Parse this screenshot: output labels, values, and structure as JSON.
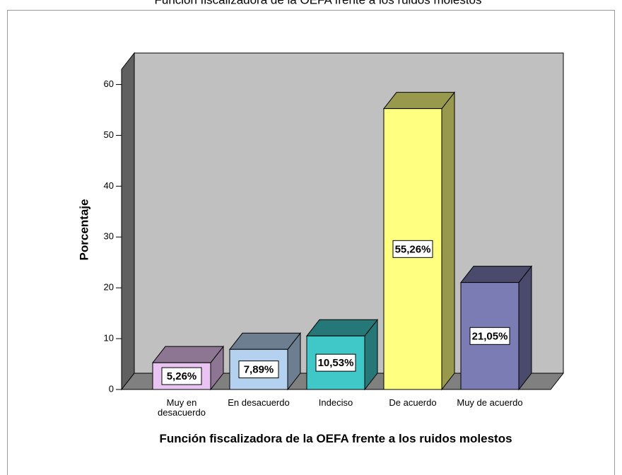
{
  "chart_data": {
    "type": "bar3d",
    "title": "Función fiscalizadora de la OEFA frente a los ruidos molestos",
    "x_label": "Función fiscalizadora de la OEFA frente a los ruidos molestos",
    "y_label": "Porcentaje",
    "categories": [
      "Muy en desacuerdo",
      "En desacuerdo",
      "Indeciso",
      "De acuerdo",
      "Muy de acuerdo"
    ],
    "values": [
      5.26,
      7.89,
      10.53,
      55.26,
      21.05
    ],
    "value_labels": [
      "5,26%",
      "7,89%",
      "10,53%",
      "55,26%",
      "21,05%"
    ],
    "colors": [
      "#e9c4f2",
      "#b4d2f0",
      "#40c8c8",
      "#ffff80",
      "#7c7cb4"
    ],
    "ylim": [
      0,
      63
    ],
    "yticks": [
      0,
      10,
      20,
      30,
      40,
      50,
      60
    ]
  }
}
